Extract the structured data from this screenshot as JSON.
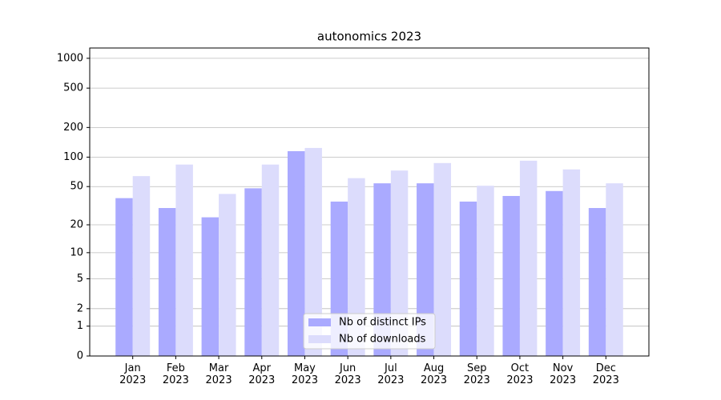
{
  "chart_data": {
    "type": "bar",
    "title": "autonomics 2023",
    "categories": [
      "Jan\n2023",
      "Feb\n2023",
      "Mar\n2023",
      "Apr\n2023",
      "May\n2023",
      "Jun\n2023",
      "Jul\n2023",
      "Aug\n2023",
      "Sep\n2023",
      "Oct\n2023",
      "Nov\n2023",
      "Dec\n2023"
    ],
    "series": [
      {
        "name": "Nb of distinct IPs",
        "color": "#aaaaff",
        "values": [
          38,
          30,
          24,
          48,
          115,
          35,
          54,
          54,
          35,
          40,
          45,
          30
        ]
      },
      {
        "name": "Nb of downloads",
        "color": "#dcdcfc",
        "values": [
          64,
          84,
          42,
          84,
          124,
          61,
          73,
          87,
          51,
          92,
          75,
          54
        ]
      }
    ],
    "yscale": "log1p",
    "ylim": [
      0,
      1270
    ],
    "yticks": [
      0,
      1,
      2,
      5,
      10,
      20,
      50,
      100,
      200,
      500,
      1000
    ],
    "grid": true,
    "legend": "lower center"
  }
}
